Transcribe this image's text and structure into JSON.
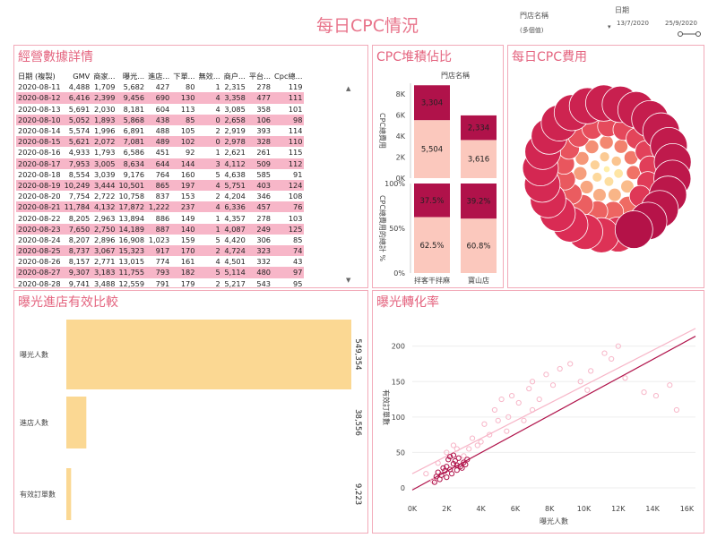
{
  "header": {
    "title": "每日CPC情況",
    "store_filter": {
      "label": "門店名稱",
      "value": "(多個值)"
    },
    "date_filter": {
      "label": "日期",
      "start": "13/7/2020",
      "end": "25/9/2020"
    }
  },
  "table_panel": {
    "title": "經營數據詳情",
    "columns": [
      "日期 (複製)",
      "GMV",
      "商家...",
      "曝光...",
      "進店...",
      "下單...",
      "無效...",
      "商户...",
      "平台...",
      "Cpc總..."
    ],
    "rows": [
      {
        "cells": [
          "2020-08-11",
          "4,488",
          "1,709",
          "5,682",
          "427",
          "80",
          "1",
          "2,315",
          "278",
          "119"
        ],
        "hl": false
      },
      {
        "cells": [
          "2020-08-12",
          "6,416",
          "2,399",
          "9,456",
          "690",
          "130",
          "4",
          "3,358",
          "477",
          "111"
        ],
        "hl": true
      },
      {
        "cells": [
          "2020-08-13",
          "5,691",
          "2,030",
          "8,181",
          "604",
          "113",
          "4",
          "3,085",
          "358",
          "101"
        ],
        "hl": false
      },
      {
        "cells": [
          "2020-08-10",
          "5,052",
          "1,893",
          "5,868",
          "438",
          "85",
          "0",
          "2,658",
          "106",
          "98"
        ],
        "hl": true
      },
      {
        "cells": [
          "2020-08-14",
          "5,574",
          "1,996",
          "6,891",
          "488",
          "105",
          "2",
          "2,919",
          "393",
          "114"
        ],
        "hl": false
      },
      {
        "cells": [
          "2020-08-15",
          "5,621",
          "2,072",
          "7,081",
          "489",
          "102",
          "0",
          "2,978",
          "328",
          "110"
        ],
        "hl": true
      },
      {
        "cells": [
          "2020-08-16",
          "4,933",
          "1,793",
          "6,586",
          "451",
          "92",
          "1",
          "2,621",
          "261",
          "115"
        ],
        "hl": false
      },
      {
        "cells": [
          "2020-08-17",
          "7,953",
          "3,005",
          "8,634",
          "644",
          "144",
          "3",
          "4,112",
          "509",
          "112"
        ],
        "hl": true
      },
      {
        "cells": [
          "2020-08-18",
          "8,554",
          "3,039",
          "9,176",
          "764",
          "160",
          "5",
          "4,638",
          "585",
          "91"
        ],
        "hl": false
      },
      {
        "cells": [
          "2020-08-19",
          "10,249",
          "3,444",
          "10,501",
          "865",
          "197",
          "4",
          "5,751",
          "403",
          "124"
        ],
        "hl": true
      },
      {
        "cells": [
          "2020-08-20",
          "7,754",
          "2,722",
          "10,758",
          "837",
          "153",
          "2",
          "4,204",
          "346",
          "108"
        ],
        "hl": false
      },
      {
        "cells": [
          "2020-08-21",
          "11,784",
          "4,132",
          "17,872",
          "1,222",
          "237",
          "4",
          "6,336",
          "457",
          "76"
        ],
        "hl": true
      },
      {
        "cells": [
          "2020-08-22",
          "8,205",
          "2,963",
          "13,894",
          "886",
          "149",
          "1",
          "4,357",
          "278",
          "103"
        ],
        "hl": false
      },
      {
        "cells": [
          "2020-08-23",
          "7,650",
          "2,750",
          "14,189",
          "887",
          "140",
          "1",
          "4,087",
          "249",
          "125"
        ],
        "hl": true
      },
      {
        "cells": [
          "2020-08-24",
          "8,207",
          "2,896",
          "16,908",
          "1,023",
          "159",
          "5",
          "4,420",
          "306",
          "85"
        ],
        "hl": false
      },
      {
        "cells": [
          "2020-08-25",
          "8,737",
          "3,067",
          "15,323",
          "917",
          "170",
          "2",
          "4,724",
          "323",
          "74"
        ],
        "hl": true
      },
      {
        "cells": [
          "2020-08-26",
          "8,157",
          "2,771",
          "13,015",
          "774",
          "161",
          "4",
          "4,501",
          "332",
          "43"
        ],
        "hl": false
      },
      {
        "cells": [
          "2020-08-27",
          "9,307",
          "3,183",
          "11,755",
          "793",
          "182",
          "5",
          "5,114",
          "480",
          "97"
        ],
        "hl": true
      },
      {
        "cells": [
          "2020-08-28",
          "9,741",
          "3,488",
          "12,559",
          "791",
          "179",
          "2",
          "5,217",
          "543",
          "95"
        ],
        "hl": false
      }
    ]
  },
  "stack_panel": {
    "title": "CPC堆積佔比",
    "legend_title": "門店名稱"
  },
  "bubble_panel": {
    "title": "每日CPC費用"
  },
  "hbar_panel": {
    "title": "曝光進店有效比較"
  },
  "scatter_panel": {
    "title": "曝光轉化率"
  },
  "colors": {
    "dark": "#b0124a",
    "light": "#fbc8bd",
    "panel_border": "#f2aab9",
    "title": "#e4647f",
    "hbar": "#fbd893",
    "row_highlight": "#f7b6c8"
  },
  "chart_data": [
    {
      "type": "bar",
      "stacked": true,
      "categories": [
        "拌客干拌麻",
        "寶山店"
      ],
      "top": {
        "ylabel": "CPC總費用",
        "ylim": [
          0,
          9000
        ],
        "yticks": [
          "0K",
          "2K",
          "4K",
          "6K",
          "8K"
        ],
        "series": [
          {
            "values": [
              5504,
              3616
            ],
            "color": "#fbc8bd"
          },
          {
            "values": [
              3304,
              2334
            ],
            "color": "#b0124a"
          }
        ]
      },
      "bottom": {
        "ylabel": "CPC總費用的總計 %",
        "ylim": [
          0,
          100
        ],
        "yticks": [
          "0%",
          "50%",
          "100%"
        ],
        "series": [
          {
            "values": [
              62.5,
              60.8
            ],
            "labels": [
              "62.5%",
              "60.8%"
            ],
            "color": "#fbc8bd"
          },
          {
            "values": [
              37.5,
              39.2
            ],
            "labels": [
              "37.5%",
              "39.2%"
            ],
            "color": "#b0124a"
          }
        ]
      }
    },
    {
      "type": "scatter",
      "subtype": "packed-bubble",
      "values": [
        122,
        121,
        119,
        118,
        117,
        116,
        115,
        114,
        113,
        112,
        111,
        110,
        109,
        108,
        108,
        107,
        106,
        105,
        104,
        103,
        102,
        101,
        100,
        99,
        98,
        97,
        96,
        95,
        94,
        93,
        92,
        91,
        90,
        89,
        88,
        87,
        86,
        85,
        84,
        83,
        82,
        80,
        78,
        76,
        74,
        72,
        70,
        68,
        66,
        64,
        62,
        60,
        58,
        55,
        52,
        49,
        46,
        43,
        40,
        36
      ]
    },
    {
      "type": "bar",
      "orientation": "horizontal",
      "categories": [
        "曝光人數",
        "進店人數",
        "有效訂單數"
      ],
      "values": [
        549354,
        38556,
        9223
      ],
      "labels": [
        "549,354",
        "38,556",
        "9,223"
      ]
    },
    {
      "type": "scatter",
      "xlabel": "曝光人數",
      "ylabel": "有效訂單數",
      "xlim": [
        0,
        16500
      ],
      "ylim": [
        0,
        240
      ],
      "xticks": [
        0,
        2000,
        4000,
        6000,
        8000,
        10000,
        12000,
        14000,
        16000
      ],
      "xtick_labels": [
        "0K",
        "2K",
        "4K",
        "6K",
        "8K",
        "10K",
        "12K",
        "14K",
        "16K"
      ],
      "yticks": [
        0,
        50,
        100,
        150,
        200
      ],
      "trendlines": [
        {
          "from": [
            0,
            -3
          ],
          "to": [
            16500,
            214
          ],
          "color": "#b0124a"
        },
        {
          "from": [
            0,
            20
          ],
          "to": [
            16500,
            225
          ],
          "color": "#f7b6c8"
        }
      ],
      "series": [
        {
          "points": [
            [
              1500,
              22
            ],
            [
              1800,
              28
            ],
            [
              2000,
              30
            ],
            [
              2200,
              26
            ],
            [
              1700,
              18
            ],
            [
              2400,
              34
            ],
            [
              2100,
              40
            ],
            [
              2600,
              32
            ],
            [
              1900,
              24
            ],
            [
              2300,
              20
            ],
            [
              2800,
              30
            ],
            [
              2500,
              38
            ],
            [
              1600,
              12
            ],
            [
              2700,
              42
            ],
            [
              3000,
              36
            ],
            [
              1400,
              16
            ],
            [
              2200,
              44
            ],
            [
              2900,
              28
            ],
            [
              3100,
              33
            ],
            [
              2000,
              15
            ],
            [
              1300,
              8
            ],
            [
              2600,
              25
            ],
            [
              3200,
              40
            ],
            [
              2400,
              46
            ]
          ],
          "color": "#b0124a"
        },
        {
          "points": [
            [
              800,
              20
            ],
            [
              1200,
              10
            ],
            [
              1500,
              35
            ],
            [
              2000,
              50
            ],
            [
              2400,
              60
            ],
            [
              2600,
              55
            ],
            [
              3000,
              45
            ],
            [
              3500,
              70
            ],
            [
              3800,
              60
            ],
            [
              4200,
              90
            ],
            [
              4500,
              75
            ],
            [
              4800,
              110
            ],
            [
              5000,
              95
            ],
            [
              5200,
              125
            ],
            [
              5600,
              100
            ],
            [
              5800,
              130
            ],
            [
              6200,
              120
            ],
            [
              6500,
              95
            ],
            [
              6800,
              140
            ],
            [
              7000,
              150
            ],
            [
              7400,
              125
            ],
            [
              7800,
              160
            ],
            [
              8200,
              145
            ],
            [
              8600,
              168
            ],
            [
              9200,
              175
            ],
            [
              9800,
              150
            ],
            [
              10400,
              165
            ],
            [
              11200,
              190
            ],
            [
              11600,
              182
            ],
            [
              12000,
              200
            ],
            [
              12400,
              155
            ],
            [
              13500,
              135
            ],
            [
              14200,
              130
            ],
            [
              15000,
              145
            ],
            [
              15400,
              110
            ],
            [
              10200,
              138
            ],
            [
              7000,
              110
            ],
            [
              5500,
              80
            ],
            [
              4000,
              65
            ],
            [
              3300,
              55
            ]
          ],
          "color": "#f7b6c8"
        }
      ]
    }
  ]
}
